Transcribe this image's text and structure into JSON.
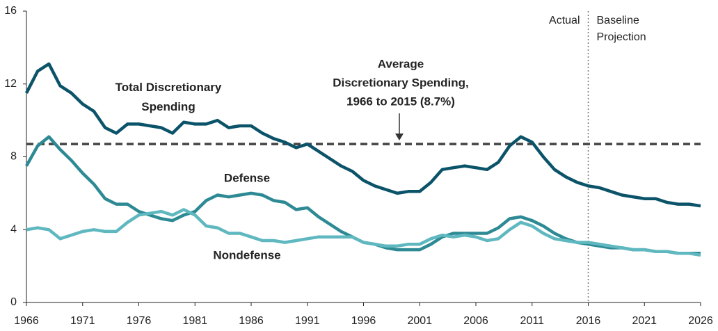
{
  "chart_data": {
    "type": "line",
    "x": [
      1966,
      1967,
      1968,
      1969,
      1970,
      1971,
      1972,
      1973,
      1974,
      1975,
      1976,
      1977,
      1978,
      1979,
      1980,
      1981,
      1982,
      1983,
      1984,
      1985,
      1986,
      1987,
      1988,
      1989,
      1990,
      1991,
      1992,
      1993,
      1994,
      1995,
      1996,
      1997,
      1998,
      1999,
      2000,
      2001,
      2002,
      2003,
      2004,
      2005,
      2006,
      2007,
      2008,
      2009,
      2010,
      2011,
      2012,
      2013,
      2014,
      2015,
      2016,
      2017,
      2018,
      2019,
      2020,
      2021,
      2022,
      2023,
      2024,
      2025,
      2026
    ],
    "series": [
      {
        "name": "Total Discretionary Spending",
        "color": "#0b5369",
        "values": [
          11.5,
          12.7,
          13.1,
          11.9,
          11.5,
          10.9,
          10.5,
          9.6,
          9.3,
          9.8,
          9.8,
          9.7,
          9.6,
          9.3,
          9.9,
          9.8,
          9.8,
          10.0,
          9.6,
          9.7,
          9.7,
          9.3,
          9.0,
          8.8,
          8.5,
          8.7,
          8.3,
          7.9,
          7.5,
          7.2,
          6.7,
          6.4,
          6.2,
          6.0,
          6.1,
          6.1,
          6.6,
          7.3,
          7.4,
          7.5,
          7.4,
          7.3,
          7.7,
          8.6,
          9.1,
          8.8,
          8.0,
          7.3,
          6.9,
          6.6,
          6.4,
          6.3,
          6.1,
          5.9,
          5.8,
          5.7,
          5.7,
          5.5,
          5.4,
          5.4,
          5.3
        ]
      },
      {
        "name": "Defense",
        "color": "#2d8a94",
        "values": [
          7.5,
          8.6,
          9.1,
          8.4,
          7.8,
          7.1,
          6.5,
          5.7,
          5.4,
          5.4,
          5.0,
          4.8,
          4.6,
          4.5,
          4.8,
          5.0,
          5.6,
          5.9,
          5.8,
          5.9,
          6.0,
          5.9,
          5.6,
          5.5,
          5.1,
          5.2,
          4.7,
          4.3,
          3.9,
          3.6,
          3.3,
          3.2,
          3.0,
          2.9,
          2.9,
          2.9,
          3.2,
          3.6,
          3.8,
          3.8,
          3.8,
          3.8,
          4.1,
          4.6,
          4.7,
          4.5,
          4.2,
          3.8,
          3.5,
          3.3,
          3.2,
          3.1,
          3.0,
          3.0,
          2.9,
          2.9,
          2.8,
          2.8,
          2.7,
          2.7,
          2.7
        ]
      },
      {
        "name": "Nondefense",
        "color": "#5fb8bf",
        "values": [
          4.0,
          4.1,
          4.0,
          3.5,
          3.7,
          3.9,
          4.0,
          3.9,
          3.9,
          4.4,
          4.8,
          4.9,
          5.0,
          4.8,
          5.1,
          4.8,
          4.2,
          4.1,
          3.8,
          3.8,
          3.6,
          3.4,
          3.4,
          3.3,
          3.4,
          3.5,
          3.6,
          3.6,
          3.6,
          3.6,
          3.3,
          3.2,
          3.1,
          3.1,
          3.2,
          3.2,
          3.5,
          3.7,
          3.6,
          3.7,
          3.6,
          3.4,
          3.5,
          4.0,
          4.4,
          4.2,
          3.8,
          3.5,
          3.4,
          3.3,
          3.3,
          3.2,
          3.1,
          3.0,
          2.9,
          2.9,
          2.8,
          2.8,
          2.7,
          2.7,
          2.6
        ]
      }
    ],
    "xlim": [
      1966,
      2026
    ],
    "xticks": [
      1966,
      1971,
      1976,
      1981,
      1986,
      1991,
      1996,
      2001,
      2006,
      2011,
      2016,
      2021,
      2026
    ],
    "ylim": [
      0,
      16
    ],
    "yticks": [
      0,
      4,
      8,
      12,
      16
    ],
    "average_line": 8.7,
    "projection_start": 2016,
    "average_label": [
      "Average",
      "Discretionary Spending,",
      "1966 to 2015 (8.7%)"
    ],
    "actual_label": "Actual",
    "projection_label": [
      "Baseline",
      "Projection"
    ]
  }
}
